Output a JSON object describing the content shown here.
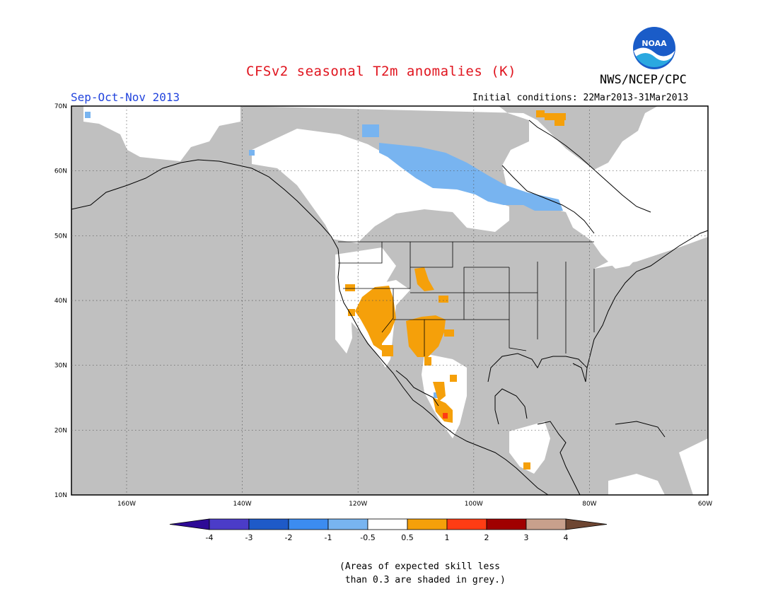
{
  "header": {
    "title": "CFSv2 seasonal T2m anomalies (K)",
    "season": "Sep-Oct-Nov 2013",
    "initial_conditions": "Initial conditions: 22Mar2013-31Mar2013",
    "agency": "NWS/NCEP/CPC",
    "logo_text": "NOAA"
  },
  "map": {
    "lat_labels": [
      "70N",
      "60N",
      "50N",
      "40N",
      "30N",
      "20N",
      "10N"
    ],
    "lon_labels": [
      "160W",
      "140W",
      "120W",
      "100W",
      "80W",
      "60W"
    ],
    "colors": {
      "grey_skill": "#c0c0c0",
      "land_white": "#ffffff",
      "cold_minus1": "#78b4f0",
      "warm_plus05": "#f5a00a",
      "warm_plus1": "#ff3c14"
    }
  },
  "colorbar": {
    "labels": [
      "-4",
      "-3",
      "-2",
      "-1",
      "-0.5",
      "0.5",
      "1",
      "2",
      "3",
      "4"
    ],
    "colors": [
      "#2e0a96",
      "#4b3cc8",
      "#1e5ac8",
      "#3c8cf0",
      "#78b4f0",
      "#ffffff",
      "#f5a00a",
      "#ff3c14",
      "#a00000",
      "#c8a08c",
      "#6e4632"
    ]
  },
  "footnote": {
    "line1": "(Areas of expected skill less",
    "line2": " than 0.3 are shaded in grey.)"
  }
}
